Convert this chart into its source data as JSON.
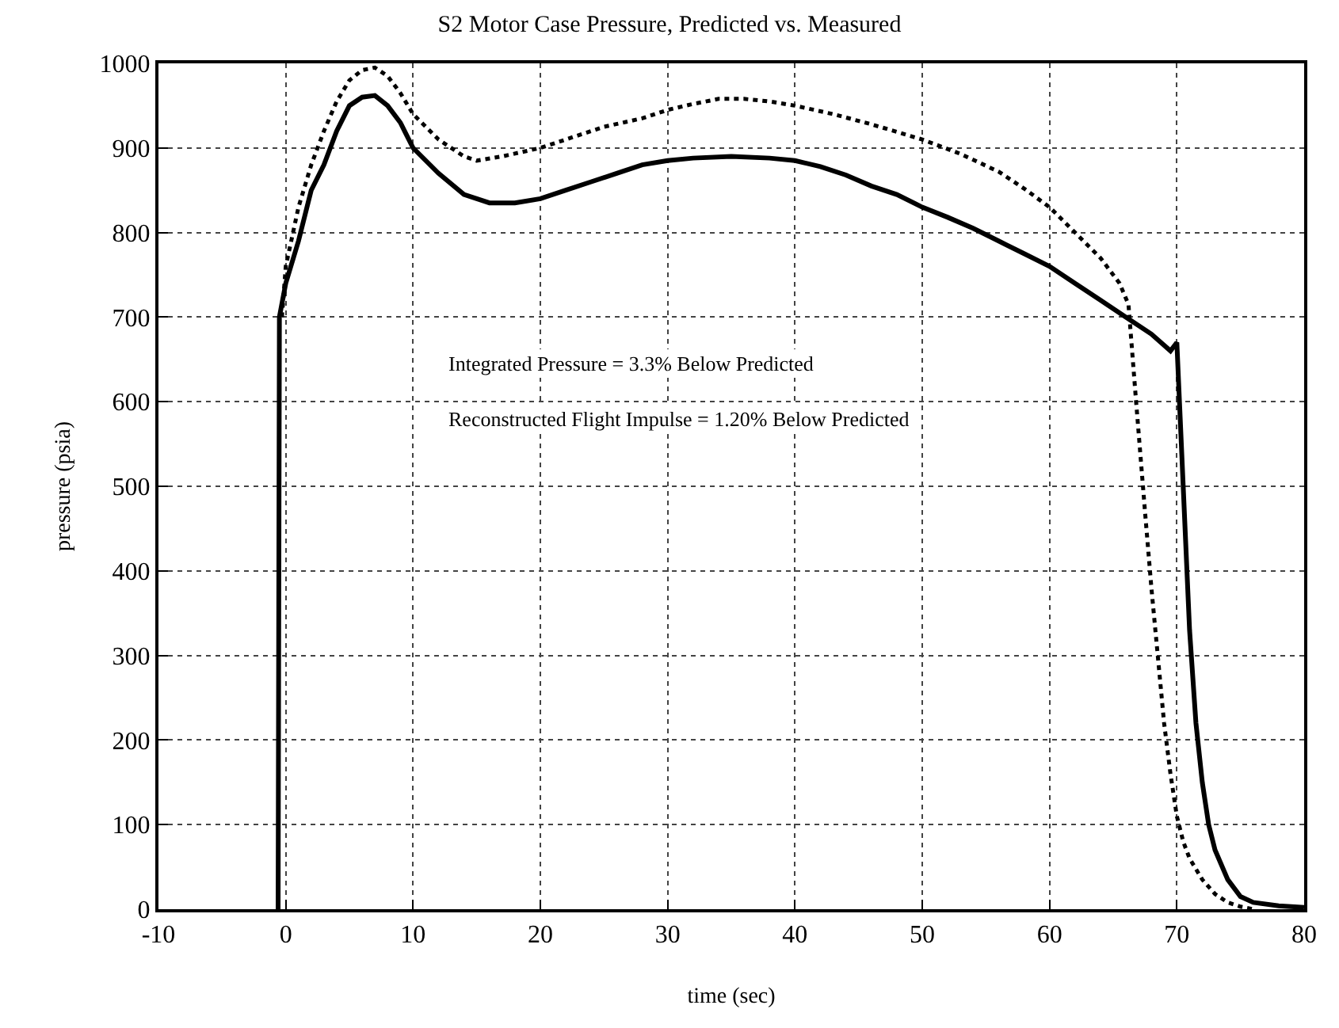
{
  "chart_data": {
    "type": "line",
    "title": "S2 Motor Case Pressure, Predicted vs. Measured",
    "xlabel": "time (sec)",
    "ylabel": "pressure (psia)",
    "xlim": [
      -10,
      80
    ],
    "xticks": [
      -10,
      0,
      10,
      20,
      30,
      40,
      50,
      60,
      70,
      80
    ],
    "ylim": [
      0,
      1000
    ],
    "yticks": [
      0,
      100,
      200,
      300,
      400,
      500,
      600,
      700,
      800,
      900,
      1000
    ],
    "grid": true,
    "annotations": [
      "Integrated Pressure = 3.3% Below Predicted",
      "Reconstructed Flight Impulse = 1.20% Below Predicted"
    ],
    "series": [
      {
        "color": "#000000",
        "line_style": "solid",
        "x": [
          -0.6,
          -0.5,
          0,
          1,
          2,
          3,
          4,
          5,
          6,
          7,
          8,
          9,
          10,
          12,
          14,
          16,
          18,
          20,
          22,
          24,
          26,
          28,
          30,
          32,
          35,
          38,
          40,
          42,
          44,
          46,
          48,
          50,
          52,
          54,
          56,
          58,
          60,
          62,
          64,
          66,
          68,
          69.5,
          70,
          70.5,
          71,
          71.5,
          72,
          72.5,
          73,
          74,
          75,
          76,
          78,
          80
        ],
        "values": [
          0,
          700,
          740,
          790,
          850,
          880,
          920,
          950,
          960,
          962,
          950,
          930,
          900,
          870,
          845,
          835,
          835,
          840,
          850,
          860,
          870,
          880,
          885,
          888,
          890,
          888,
          885,
          878,
          868,
          855,
          845,
          830,
          818,
          805,
          790,
          775,
          760,
          740,
          720,
          700,
          680,
          660,
          670,
          500,
          330,
          220,
          150,
          100,
          70,
          35,
          15,
          8,
          4,
          2
        ]
      },
      {
        "color": "#000000",
        "line_style": "dotted",
        "x": [
          -0.3,
          0,
          1,
          2,
          3,
          4,
          5,
          6,
          7,
          8,
          9,
          10,
          12,
          14,
          15,
          17,
          20,
          22,
          25,
          28,
          30,
          32,
          34,
          36,
          38,
          40,
          43,
          46,
          50,
          53,
          56,
          58,
          60,
          62,
          64,
          65.5,
          66.2,
          66.8,
          67.5,
          68,
          68.5,
          69,
          69.5,
          70,
          70.5,
          71,
          72,
          73,
          74,
          75,
          76
        ],
        "values": [
          700,
          760,
          830,
          880,
          920,
          955,
          980,
          992,
          995,
          985,
          965,
          940,
          910,
          890,
          885,
          890,
          900,
          910,
          925,
          935,
          945,
          952,
          958,
          958,
          955,
          950,
          940,
          928,
          910,
          893,
          872,
          852,
          830,
          800,
          770,
          740,
          715,
          600,
          470,
          380,
          300,
          220,
          160,
          110,
          80,
          60,
          35,
          18,
          8,
          3,
          0
        ]
      }
    ]
  }
}
